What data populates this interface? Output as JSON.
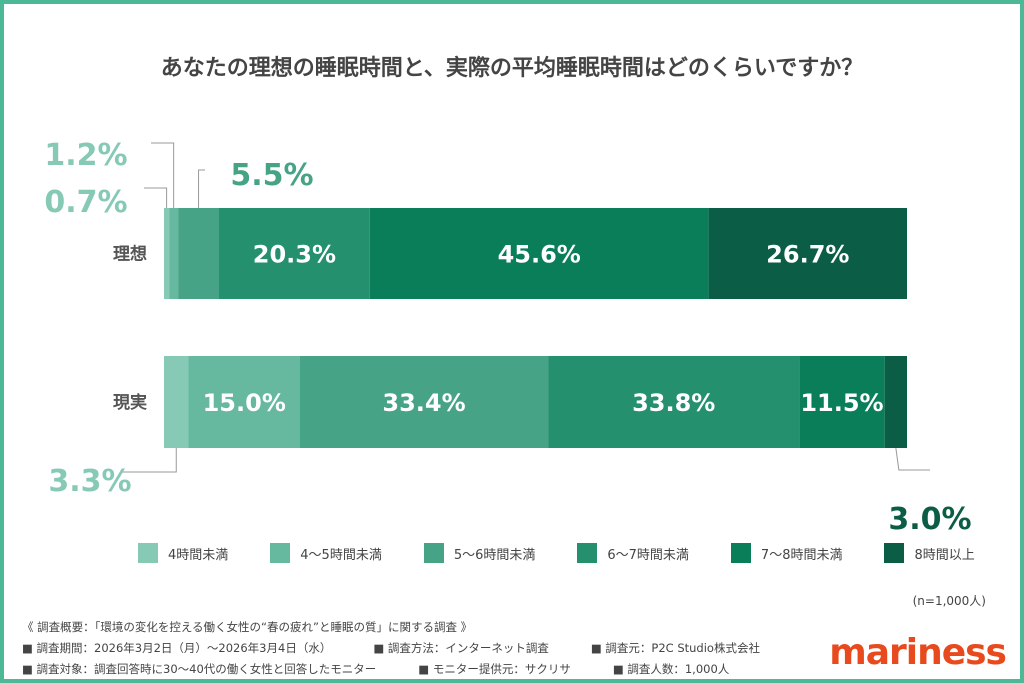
{
  "title": "あなたの理想の睡眠時間と、実際の平均睡眠時間はどのくらいですか？",
  "colors": [
    "#86cab5",
    "#66b89e",
    "#47a385",
    "#25906d",
    "#0a7d59",
    "#0b5e45"
  ],
  "chart_data": {
    "type": "bar",
    "orientation": "horizontal",
    "stacked": true,
    "title": "あなたの理想の睡眠時間と、実際の平均睡眠時間はどのくらいですか？",
    "categories": [
      "理想",
      "現実"
    ],
    "series": [
      {
        "name": "4時間未満",
        "values": [
          0.7,
          3.3
        ]
      },
      {
        "name": "4〜5時間未満",
        "values": [
          1.2,
          15.0
        ]
      },
      {
        "name": "5〜6時間未満",
        "values": [
          5.5,
          33.4
        ]
      },
      {
        "name": "6〜7時間未満",
        "values": [
          20.3,
          33.8
        ]
      },
      {
        "name": "7〜8時間未満",
        "values": [
          45.6,
          11.5
        ]
      },
      {
        "name": "8時間以上",
        "values": [
          26.7,
          3.0
        ]
      }
    ],
    "unit": "%",
    "legend": "bottom"
  },
  "legend": [
    "4時間未満",
    "4〜5時間未満",
    "5〜6時間未満",
    "6〜7時間未満",
    "7〜8時間未満",
    "8時間以上"
  ],
  "n_label": "(n=1,000人)",
  "footer": {
    "summary": "《 調査概要：「環境の変化を控える働く女性の“春の疲れ”と睡眠の質」に関する調査 》",
    "period": "■ 調査期間：2026年3月2日（月）〜2026年3月4日（水）",
    "method": "■ 調査方法：インターネット調査",
    "source": "■ 調査元：P2C Studio株式会社",
    "target": "■ 調査対象：調査回答時に30〜40代の働く女性と回答したモニター",
    "provider": "■ モニター提供元：サクリサ",
    "count": "■ 調査人数：1,000人"
  },
  "logo": "mariness"
}
